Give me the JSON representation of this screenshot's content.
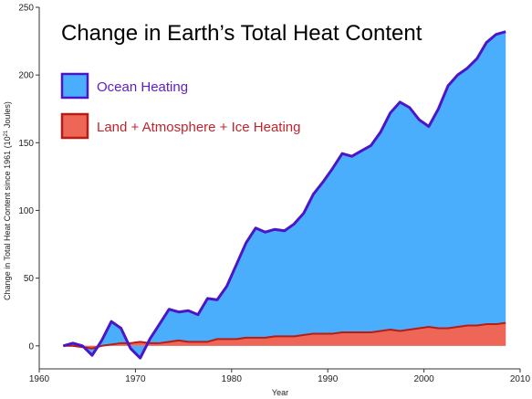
{
  "chart_data": {
    "type": "area",
    "title": "Change in Earth’s Total Heat Content",
    "xlabel": "Year",
    "ylabel_prefix": "Change in Total Heat Content since 1961 (10",
    "ylabel_exp": "21",
    "ylabel_suffix": " Joules)",
    "xlim": [
      1960,
      2010
    ],
    "ylim": [
      -17,
      250
    ],
    "x_ticks": [
      1960,
      1970,
      1980,
      1990,
      2000,
      2010
    ],
    "y_ticks": [
      0,
      50,
      100,
      150,
      200,
      250
    ],
    "grid": false,
    "legend_position": "top-left",
    "series": [
      {
        "name": "Ocean Heating",
        "fill": "#4aaefc",
        "stroke": "#4a16c8",
        "x": [
          1962.5,
          1963.5,
          1964.5,
          1965.5,
          1966.5,
          1967.5,
          1968.5,
          1969.5,
          1970.5,
          1971.5,
          1972.5,
          1973.5,
          1974.5,
          1975.5,
          1976.5,
          1977.5,
          1978.5,
          1979.5,
          1980.5,
          1981.5,
          1982.5,
          1983.5,
          1984.5,
          1985.5,
          1986.5,
          1987.5,
          1988.5,
          1989.5,
          1990.5,
          1991.5,
          1992.5,
          1993.5,
          1994.5,
          1995.5,
          1996.5,
          1997.5,
          1998.5,
          1999.5,
          2000.5,
          2001.5,
          2002.5,
          2003.5,
          2004.5,
          2005.5,
          2006.5,
          2007.5,
          2008.5
        ],
        "values": [
          0,
          2,
          0,
          -7,
          4,
          18,
          13,
          -2,
          -9,
          5,
          16,
          27,
          25,
          26,
          23,
          35,
          34,
          44,
          60,
          76,
          87,
          84,
          86,
          85,
          90,
          98,
          112,
          121,
          131,
          142,
          140,
          144,
          148,
          158,
          172,
          180,
          176,
          167,
          162,
          175,
          192,
          200,
          205,
          212,
          224,
          230,
          232
        ]
      },
      {
        "name": "Land + Atmosphere + Ice Heating",
        "fill": "#ee6655",
        "stroke": "#b51d16",
        "x": [
          1962.5,
          1963.5,
          1964.5,
          1965.5,
          1966.5,
          1967.5,
          1968.5,
          1969.5,
          1970.5,
          1971.5,
          1972.5,
          1973.5,
          1974.5,
          1975.5,
          1976.5,
          1977.5,
          1978.5,
          1979.5,
          1980.5,
          1981.5,
          1982.5,
          1983.5,
          1984.5,
          1985.5,
          1986.5,
          1987.5,
          1988.5,
          1989.5,
          1990.5,
          1991.5,
          1992.5,
          1993.5,
          1994.5,
          1995.5,
          1996.5,
          1997.5,
          1998.5,
          1999.5,
          2000.5,
          2001.5,
          2002.5,
          2003.5,
          2004.5,
          2005.5,
          2006.5,
          2007.5,
          2008.5
        ],
        "values": [
          0,
          0,
          -1,
          -2,
          0,
          1,
          2,
          2,
          3,
          2,
          2,
          3,
          4,
          3,
          3,
          3,
          5,
          5,
          5,
          6,
          6,
          6,
          7,
          7,
          7,
          8,
          9,
          9,
          9,
          10,
          10,
          10,
          10,
          11,
          12,
          11,
          12,
          13,
          14,
          13,
          13,
          14,
          15,
          15,
          16,
          16,
          17
        ]
      }
    ]
  }
}
